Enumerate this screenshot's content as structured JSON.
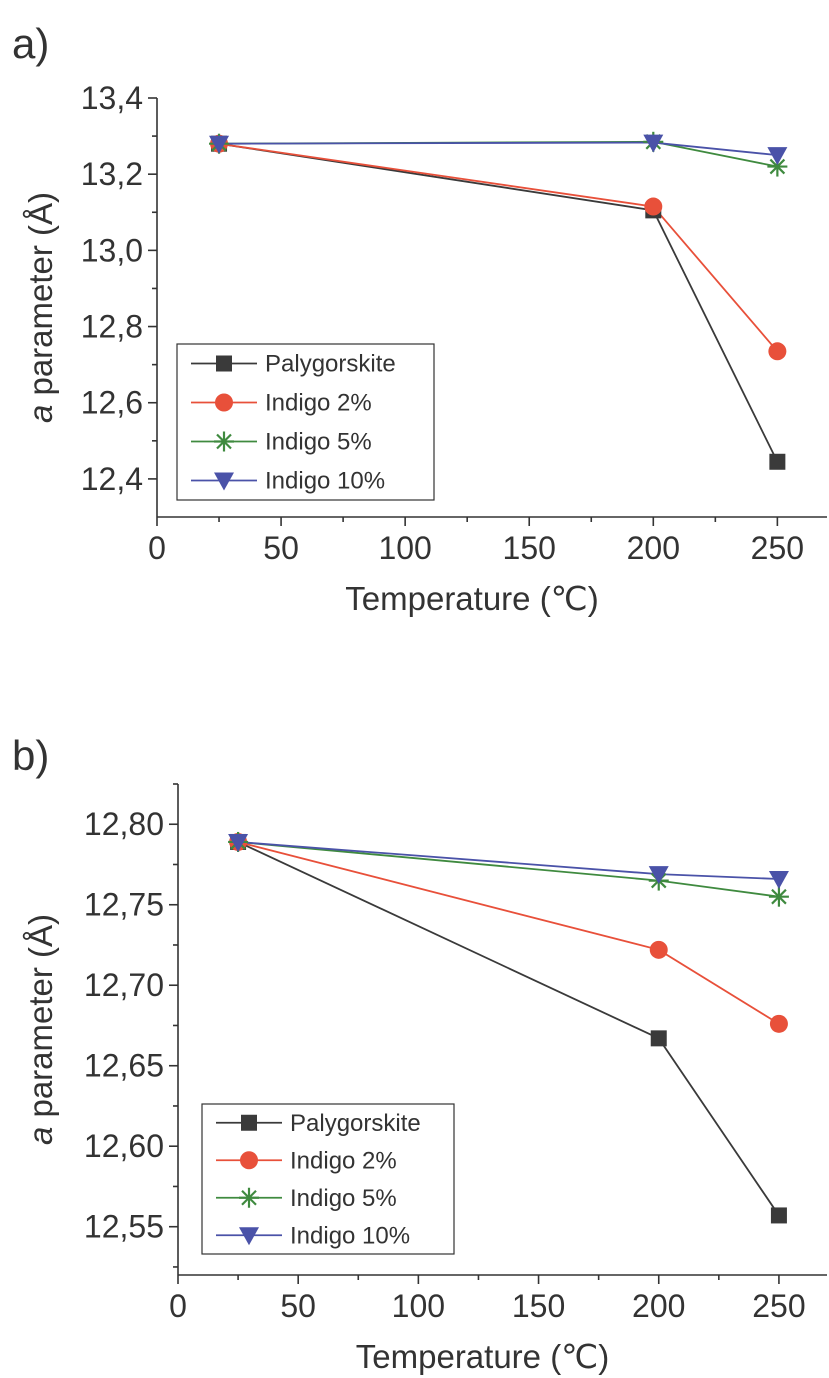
{
  "chart_data": [
    {
      "panel_label": "a)",
      "type": "line",
      "xlabel": "Temperature (℃)",
      "ylabel_italic": "a",
      "ylabel_rest": " parameter (Å)",
      "xlim": [
        0,
        270
      ],
      "ylim": [
        12.3,
        13.4
      ],
      "xticks": [
        0,
        50,
        100,
        150,
        200,
        250
      ],
      "xtick_labels": [
        "0",
        "50",
        "100",
        "150",
        "200",
        "250"
      ],
      "yticks": [
        12.4,
        12.6,
        12.8,
        13.0,
        13.2,
        13.4
      ],
      "ytick_labels": [
        "12,4",
        "12,6",
        "12,8",
        "13,0",
        "13,2",
        "13,4"
      ],
      "legend_position": "bottom-left",
      "x": [
        25,
        200,
        250
      ],
      "series": [
        {
          "name": "Palygorskite",
          "marker": "square",
          "color": "#3a3a3a",
          "values": [
            13.28,
            13.105,
            12.445
          ]
        },
        {
          "name": "Indigo 2%",
          "marker": "circle",
          "color": "#e8503a",
          "values": [
            13.28,
            13.115,
            12.735
          ]
        },
        {
          "name": "Indigo 5%",
          "marker": "asterisk",
          "color": "#3f8a3f",
          "values": [
            13.28,
            13.285,
            13.22
          ]
        },
        {
          "name": "Indigo 10%",
          "marker": "triangle-down",
          "color": "#4a52a8",
          "values": [
            13.28,
            13.283,
            13.25
          ]
        }
      ]
    },
    {
      "panel_label": "b)",
      "type": "line",
      "xlabel": "Temperature (℃)",
      "ylabel_italic": "a",
      "ylabel_rest": " parameter (Å)",
      "xlim": [
        0,
        270
      ],
      "ylim": [
        12.52,
        12.825
      ],
      "xticks": [
        0,
        50,
        100,
        150,
        200,
        250
      ],
      "xtick_labels": [
        "0",
        "50",
        "100",
        "150",
        "200",
        "250"
      ],
      "yticks": [
        12.55,
        12.6,
        12.65,
        12.7,
        12.75,
        12.8
      ],
      "ytick_labels": [
        "12,55",
        "12,60",
        "12,65",
        "12,70",
        "12,75",
        "12,80"
      ],
      "legend_position": "bottom-left",
      "x": [
        25,
        200,
        250
      ],
      "series": [
        {
          "name": "Palygorskite",
          "marker": "square",
          "color": "#3a3a3a",
          "values": [
            12.789,
            12.667,
            12.557
          ]
        },
        {
          "name": "Indigo 2%",
          "marker": "circle",
          "color": "#e8503a",
          "values": [
            12.789,
            12.722,
            12.676
          ]
        },
        {
          "name": "Indigo 5%",
          "marker": "asterisk",
          "color": "#3f8a3f",
          "values": [
            12.789,
            12.765,
            12.755
          ]
        },
        {
          "name": "Indigo 10%",
          "marker": "triangle-down",
          "color": "#4a52a8",
          "values": [
            12.789,
            12.769,
            12.766
          ]
        }
      ]
    }
  ]
}
